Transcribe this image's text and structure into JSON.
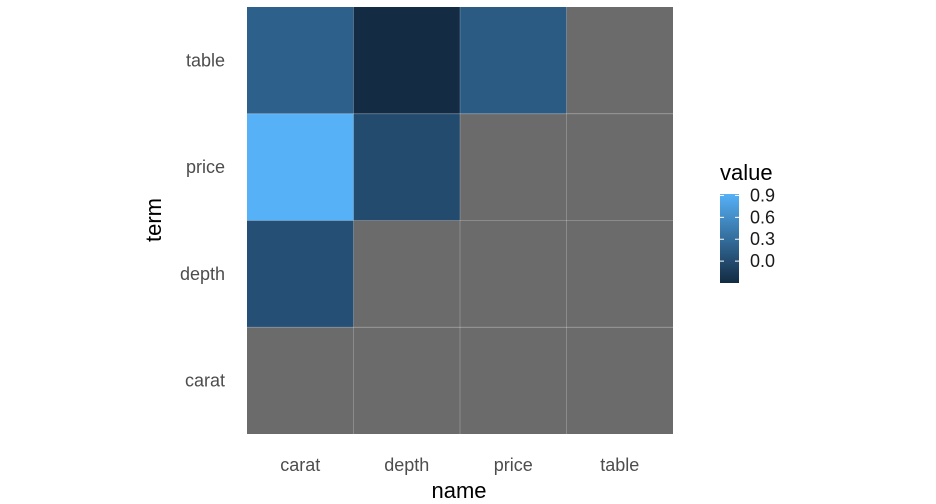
{
  "chart_data": {
    "type": "heatmap",
    "xlabel": "name",
    "ylabel": "term",
    "x_categories": [
      "carat",
      "depth",
      "price",
      "table"
    ],
    "y_categories": [
      "carat",
      "depth",
      "price",
      "table"
    ],
    "cells": [
      {
        "x": "carat",
        "y": "table",
        "value": 0.18
      },
      {
        "x": "depth",
        "y": "table",
        "value": -0.3
      },
      {
        "x": "price",
        "y": "table",
        "value": 0.13
      },
      {
        "x": "carat",
        "y": "price",
        "value": 0.92
      },
      {
        "x": "depth",
        "y": "price",
        "value": -0.01
      },
      {
        "x": "carat",
        "y": "depth",
        "value": 0.03
      }
    ],
    "na_color": "#6b6b6b",
    "legend": {
      "title": "value",
      "breaks": [
        0.9,
        0.6,
        0.3,
        0.0
      ],
      "labels": [
        "0.9",
        "0.6",
        "0.3",
        "0.0"
      ],
      "range": [
        -0.3,
        0.92
      ],
      "low_color": "#132B43",
      "high_color": "#56B1F7",
      "placement": "right"
    }
  }
}
